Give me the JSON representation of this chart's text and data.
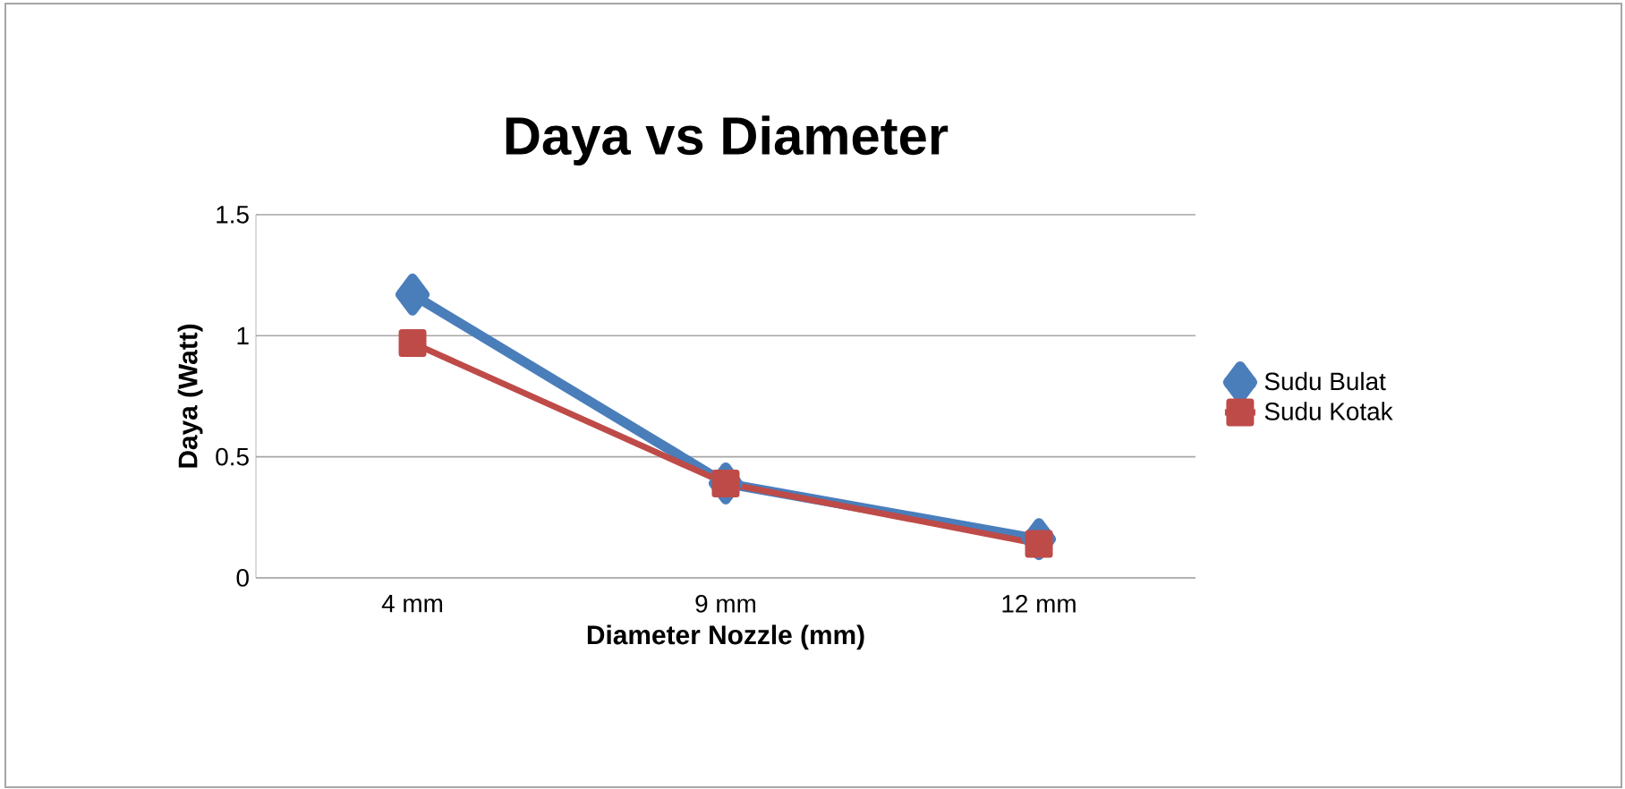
{
  "chart_data": {
    "type": "line",
    "title": "Daya vs Diameter",
    "xlabel": "Diameter Nozzle (mm)",
    "ylabel": "Daya (Watt)",
    "categories": [
      "4 mm",
      "9 mm",
      "12 mm"
    ],
    "series": [
      {
        "name": "Sudu Bulat",
        "color": "#4a7ebb",
        "marker": "diamond",
        "values": [
          1.17,
          0.39,
          0.16
        ]
      },
      {
        "name": "Sudu Kotak",
        "color": "#be4b48",
        "marker": "square",
        "values": [
          0.97,
          0.39,
          0.14
        ]
      }
    ],
    "ylim": [
      0,
      1.5
    ],
    "yticks": [
      0,
      0.5,
      1,
      1.5
    ],
    "grid": "y",
    "legend": "right"
  }
}
